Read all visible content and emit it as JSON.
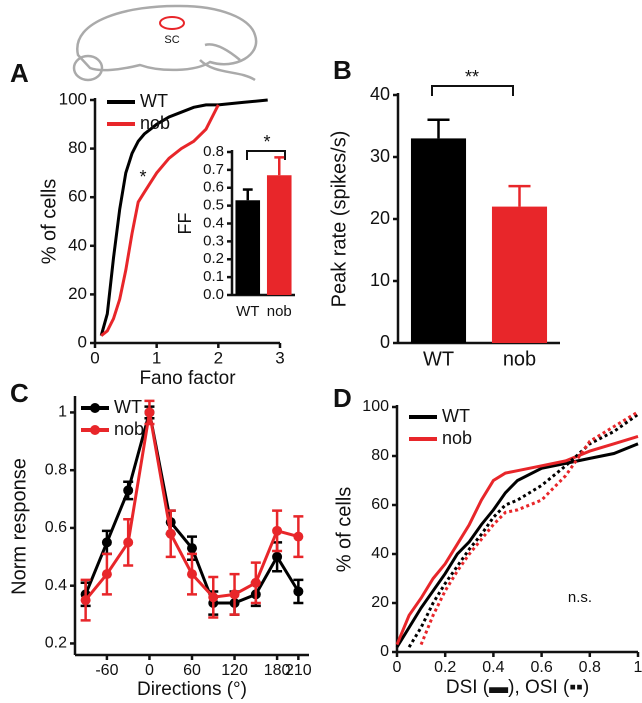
{
  "brain_label": "SC",
  "chart_data": [
    {
      "type": "line",
      "panel": "A",
      "xlabel": "Fano factor",
      "ylabel": "% of cells",
      "annotation": "*",
      "legend": "upper left",
      "x": [
        0.1,
        0.2,
        0.3,
        0.4,
        0.5,
        0.6,
        0.7,
        0.8,
        0.9,
        1.0,
        1.2,
        1.4,
        1.6,
        1.8,
        2.0,
        2.4,
        2.8
      ],
      "series": [
        {
          "name": "WT",
          "color": "#000000",
          "values": [
            3,
            12,
            35,
            55,
            70,
            78,
            83,
            86,
            88,
            90,
            93,
            95,
            97,
            98,
            98,
            99,
            100
          ]
        },
        {
          "name": "nob",
          "color": "#e8262a",
          "values": [
            3,
            5,
            10,
            18,
            30,
            45,
            58,
            62,
            66,
            70,
            76,
            80,
            83,
            88,
            98,
            null,
            null
          ]
        }
      ],
      "xlim": [
        0,
        3
      ],
      "ylim": [
        0,
        100
      ],
      "xticks": [
        0,
        1,
        2,
        3
      ],
      "yticks": [
        0,
        20,
        40,
        60,
        80,
        100
      ]
    },
    {
      "type": "bar",
      "ylabel": "FF",
      "annotation": "*",
      "categories": [
        "WT",
        "nob"
      ],
      "values": [
        0.53,
        0.67
      ],
      "errors": [
        0.06,
        0.1
      ],
      "colors": [
        "#000000",
        "#e8262a"
      ],
      "ylim": [
        0,
        0.8
      ],
      "yticks": [
        {
          "value": 0,
          "label": "0.0"
        },
        0.1,
        0.2,
        0.3,
        0.4,
        0.5,
        0.6,
        0.7,
        0.8
      ]
    },
    {
      "type": "bar",
      "panel": "B",
      "ylabel": "Peak rate (spikes/s)",
      "annotation": "**",
      "categories": [
        "WT",
        "nob"
      ],
      "values": [
        33,
        22
      ],
      "errors": [
        3,
        3.3
      ],
      "colors": [
        "#000000",
        "#e8262a"
      ],
      "ylim": [
        0,
        40
      ],
      "yticks": [
        0,
        10,
        20,
        30,
        40
      ]
    },
    {
      "type": "line",
      "panel": "C",
      "xlabel": "Directions (°)",
      "ylabel": "Norm response",
      "markers": true,
      "legend": "upper left",
      "x": [
        -90,
        -60,
        -30,
        0,
        30,
        60,
        90,
        120,
        150,
        180,
        210
      ],
      "series": [
        {
          "name": "WT",
          "color": "#000000",
          "values": [
            0.37,
            0.55,
            0.73,
            1.0,
            0.62,
            0.53,
            0.34,
            0.34,
            0.37,
            0.5,
            0.38
          ],
          "errors": [
            0.04,
            0.04,
            0.03,
            0.02,
            0.04,
            0.04,
            0.04,
            0.04,
            0.04,
            0.05,
            0.04
          ]
        },
        {
          "name": "nob",
          "color": "#e8262a",
          "values": [
            0.35,
            0.44,
            0.55,
            1.0,
            0.58,
            0.44,
            0.36,
            0.37,
            0.41,
            0.59,
            0.57
          ],
          "errors": [
            0.07,
            0.07,
            0.08,
            0.04,
            0.08,
            0.07,
            0.07,
            0.07,
            0.07,
            0.07,
            0.07
          ]
        }
      ],
      "xlim": [
        -105,
        225
      ],
      "ylim": [
        0.16,
        1.05
      ],
      "xticks": [
        -60,
        0,
        60,
        120,
        180,
        210
      ],
      "yticks": [
        0.2,
        0.4,
        0.6,
        0.8,
        1
      ]
    },
    {
      "type": "line",
      "panel": "D",
      "xlabel": "DSI (▬), OSI (▪▪)",
      "ylabel": "% of cells",
      "annotation": "n.s.",
      "legend": "upper left",
      "x": [
        0,
        0.05,
        0.1,
        0.15,
        0.2,
        0.25,
        0.3,
        0.35,
        0.4,
        0.45,
        0.5,
        0.6,
        0.7,
        0.8,
        0.9,
        1.0
      ],
      "series": [
        {
          "name": "WT",
          "color": "#000000",
          "dash": "solid",
          "values": [
            2,
            10,
            18,
            25,
            32,
            40,
            45,
            52,
            58,
            65,
            70,
            75,
            77,
            79,
            81,
            85
          ]
        },
        {
          "name": "nob",
          "color": "#e8262a",
          "dash": "solid",
          "values": [
            3,
            15,
            22,
            30,
            36,
            44,
            52,
            62,
            70,
            73,
            74,
            76,
            78,
            82,
            85,
            88
          ]
        },
        {
          "color": "#000000",
          "dash": "dotted",
          "values": [
            null,
            2,
            10,
            20,
            28,
            35,
            42,
            48,
            55,
            60,
            62,
            68,
            76,
            85,
            90,
            97
          ]
        },
        {
          "color": "#e8262a",
          "dash": "dotted",
          "values": [
            null,
            null,
            3,
            15,
            25,
            33,
            40,
            46,
            52,
            57,
            58,
            62,
            72,
            86,
            92,
            98
          ]
        }
      ],
      "xlim": [
        0,
        1
      ],
      "ylim": [
        0,
        100
      ],
      "xticks": [
        0,
        0.2,
        0.4,
        0.6,
        0.8,
        1
      ],
      "yticks": [
        0,
        20,
        40,
        60,
        80,
        100
      ]
    }
  ]
}
